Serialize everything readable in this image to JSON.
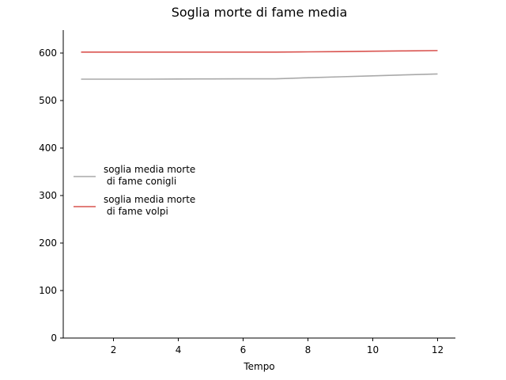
{
  "chart_data": {
    "type": "line",
    "title": "Soglia morte di fame media",
    "xlabel": "Tempo",
    "ylabel": "",
    "xlim": [
      0.45,
      12.55
    ],
    "ylim": [
      0,
      615
    ],
    "xticks": [
      2,
      4,
      6,
      8,
      10,
      12
    ],
    "yticks": [
      0,
      100,
      200,
      300,
      400,
      500,
      600
    ],
    "grid": false,
    "legend_position": "center-left",
    "series": [
      {
        "name": "soglia media morte\n di fame conigli",
        "color": "#a9a9a9",
        "x": [
          1,
          2,
          3,
          4,
          5,
          6,
          7,
          8,
          9,
          10,
          11,
          12
        ],
        "y": [
          545,
          545,
          545,
          545.3,
          545.5,
          545.7,
          545.8,
          548,
          550,
          552,
          554,
          556
        ]
      },
      {
        "name": "soglia media morte\n di fame volpi",
        "color": "#d9534f",
        "x": [
          1,
          2,
          3,
          4,
          5,
          6,
          7,
          8,
          9,
          10,
          11,
          12
        ],
        "y": [
          602,
          602,
          602,
          602,
          602,
          602,
          602,
          602.5,
          603,
          603.8,
          604.5,
          605.2
        ]
      }
    ]
  }
}
